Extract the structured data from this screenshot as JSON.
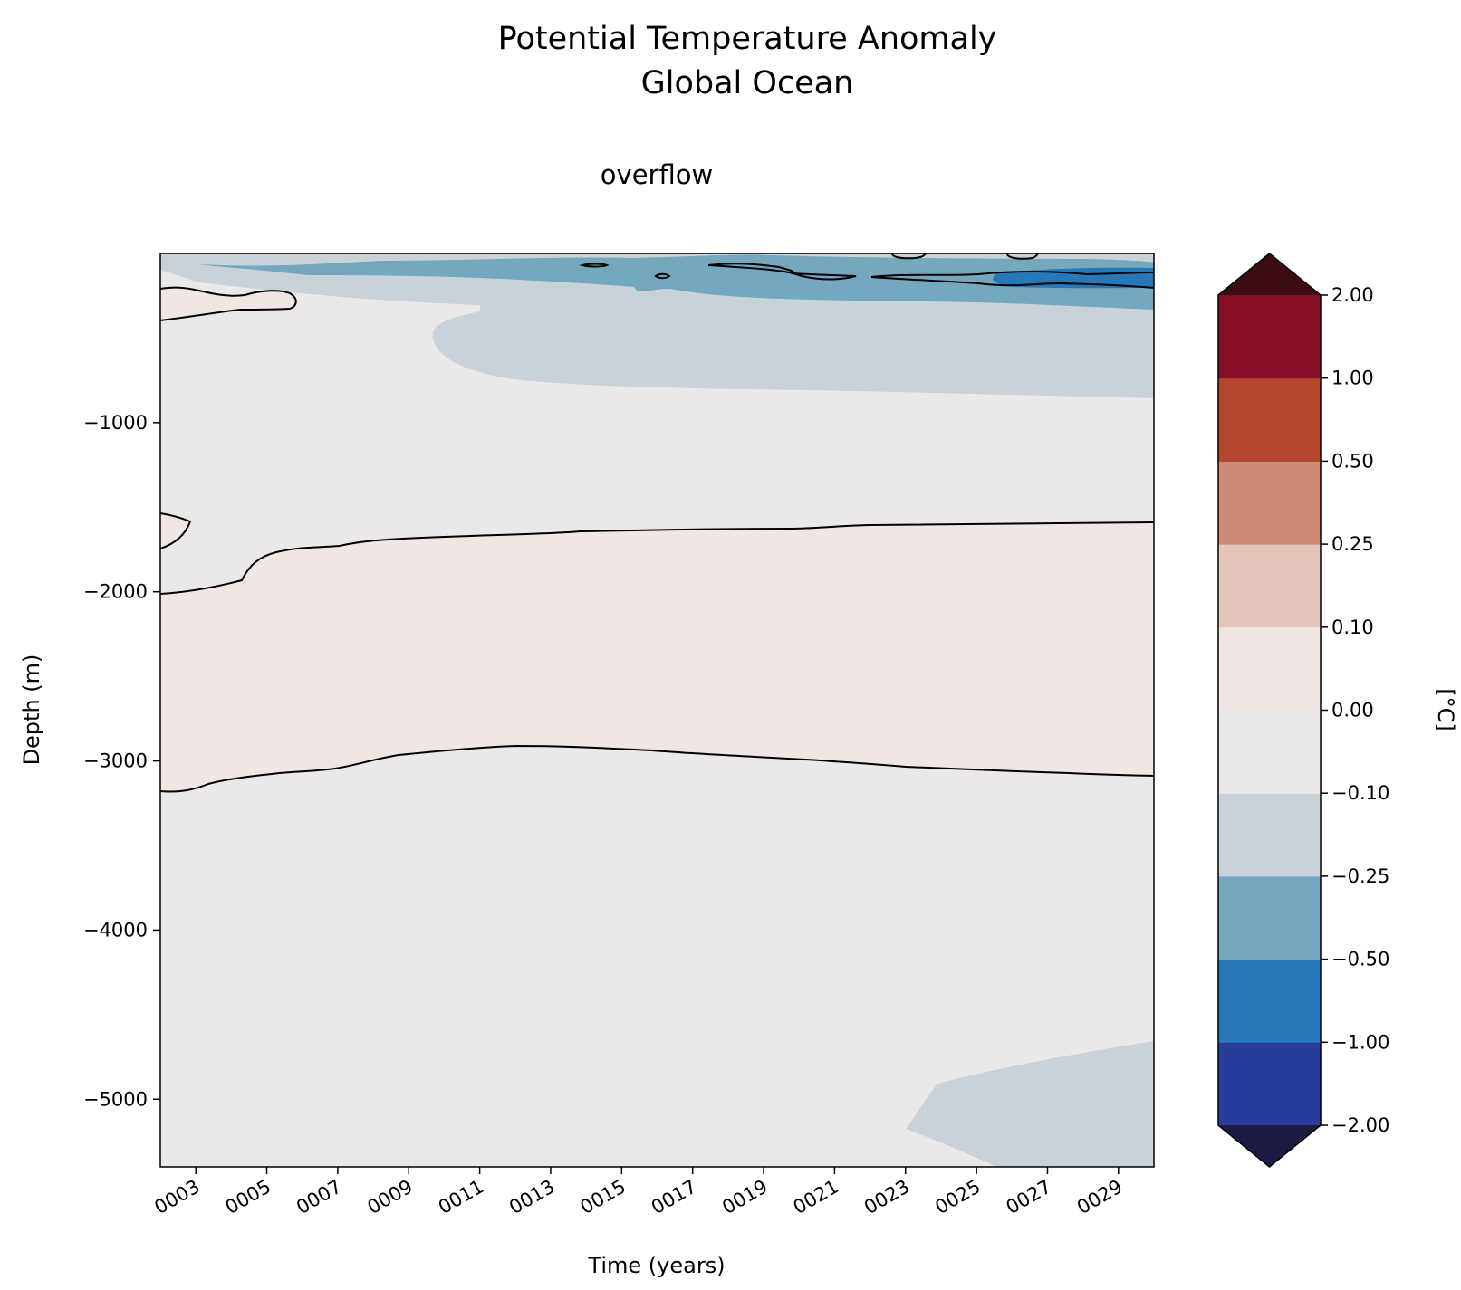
{
  "chart_data": {
    "type": "heatmap",
    "title": [
      "Potential Temperature Anomaly",
      "Global Ocean"
    ],
    "subtitle": "overflow",
    "xlabel": "Time (years)",
    "ylabel": "Depth (m)",
    "xlim": [
      2,
      30
    ],
    "ylim": [
      -5400,
      0
    ],
    "x_ticks": [
      3,
      5,
      7,
      9,
      11,
      13,
      15,
      17,
      19,
      21,
      23,
      25,
      27,
      29
    ],
    "x_tick_labels": [
      "0003",
      "0005",
      "0007",
      "0009",
      "0011",
      "0013",
      "0015",
      "0017",
      "0019",
      "0021",
      "0023",
      "0025",
      "0027",
      "0029"
    ],
    "y_ticks": [
      -1000,
      -2000,
      -3000,
      -4000,
      -5000
    ],
    "y_tick_labels": [
      "−1000",
      "−2000",
      "−3000",
      "−4000",
      "−5000"
    ],
    "grid": false,
    "colorbar": {
      "label": "[°C]",
      "levels": [
        -2.0,
        -1.0,
        -0.5,
        -0.25,
        -0.1,
        0.0,
        0.1,
        0.25,
        0.5,
        1.0,
        2.0
      ],
      "tick_labels": [
        "−2.00",
        "−1.00",
        "−0.50",
        "−0.25",
        "−0.10",
        "0.00",
        "0.10",
        "0.25",
        "0.50",
        "1.00",
        "2.00"
      ],
      "colors": [
        "#283c9c",
        "#2678b8",
        "#74a8bf",
        "#c9d2d8",
        "#eae8e8",
        "#f0e6e3",
        "#e3c5bb",
        "#cc8b72",
        "#b5462e",
        "#860f27"
      ],
      "extend_under_color": "#1c1c43",
      "extend_over_color": "#3d0b14"
    },
    "regions": [
      {
        "level": "0.00 to 0.10",
        "depth_range_m": [
          -3100,
          -1650
        ],
        "note": "positive anomaly band spanning all years"
      },
      {
        "level": "-0.10 to 0.00",
        "note": "background through most of the column"
      },
      {
        "level": "-0.25 to -0.10",
        "depth_range_m": [
          -850,
          -100
        ],
        "years": [
          2,
          30
        ]
      },
      {
        "level": "-0.50 to -0.25",
        "depth_range_m": [
          -280,
          -50
        ],
        "years": [
          3,
          30
        ]
      },
      {
        "level": "-1.00 to -0.50",
        "depth_range_m": [
          -200,
          -80
        ],
        "years": [
          22,
          30
        ]
      },
      {
        "level": "-0.25 to -0.10",
        "depth_range_m": [
          -5400,
          -4650
        ],
        "years": [
          23,
          30
        ]
      }
    ]
  }
}
